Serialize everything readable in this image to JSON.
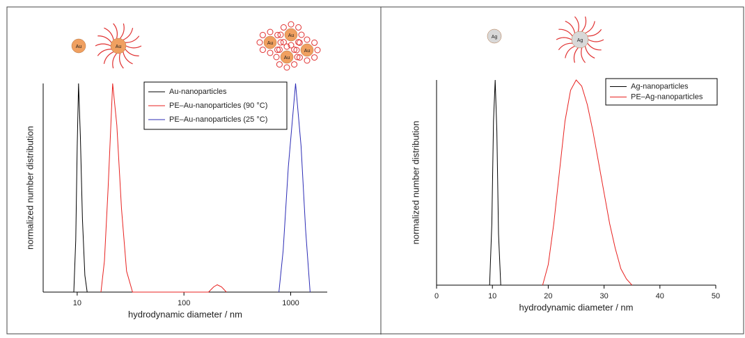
{
  "chart_data": [
    {
      "type": "line",
      "x_label": "hydrodynamic diameter / nm",
      "y_label": "normalized number distribution",
      "xscale": "log",
      "xlim": [
        4.8,
        2200
      ],
      "xticks": [
        10,
        100,
        1000
      ],
      "ylim": [
        0,
        1
      ],
      "legend": "upper right",
      "annotations": [
        "Au",
        "Au",
        "Au",
        "Au",
        "Au",
        "Au"
      ],
      "series": [
        {
          "name": "Au-nanoparticles",
          "color": "#000000",
          "x": [
            9.3,
            9.7,
            10,
            10.3,
            10.7,
            11.2,
            11.8,
            12.4
          ],
          "values": [
            0,
            0.25,
            0.7,
            1,
            0.75,
            0.35,
            0.08,
            0
          ]
        },
        {
          "name": "PE–Au-nanoparticles (90 °C)",
          "color": "#e8211f",
          "x": [
            16.7,
            18,
            19.5,
            21.5,
            23.5,
            26,
            29,
            33,
            170,
            190,
            205,
            225,
            250
          ],
          "values": [
            0,
            0.15,
            0.5,
            1,
            0.8,
            0.4,
            0.1,
            0,
            0,
            0.025,
            0.035,
            0.025,
            0
          ]
        },
        {
          "name": "PE–Au-nanoparticles (25 °C)",
          "color": "#2b2bb5",
          "x": [
            776,
            850,
            950,
            1110,
            1250,
            1380,
            1520
          ],
          "values": [
            0,
            0.2,
            0.6,
            1,
            0.7,
            0.3,
            0
          ]
        }
      ]
    },
    {
      "type": "line",
      "x_label": "hydrodynamic diameter / nm",
      "y_label": "normalized number distribution",
      "xscale": "linear",
      "xlim": [
        0,
        50
      ],
      "xticks": [
        0,
        10,
        20,
        30,
        40,
        50
      ],
      "ylim": [
        0,
        1
      ],
      "legend": "upper right",
      "annotations": [
        "Ag",
        "Ag"
      ],
      "series": [
        {
          "name": "Ag-nanoparticles",
          "color": "#000000",
          "x": [
            9.5,
            9.9,
            10.2,
            10.5,
            10.8,
            11.1,
            11.5
          ],
          "values": [
            0,
            0.3,
            0.8,
            1,
            0.75,
            0.25,
            0
          ]
        },
        {
          "name": "PE–Ag-nanoparticles",
          "color": "#e8211f",
          "x": [
            19,
            20,
            21,
            22,
            23,
            24,
            25,
            26,
            27,
            28,
            29,
            30,
            31,
            32,
            33,
            34,
            35
          ],
          "values": [
            0,
            0.1,
            0.3,
            0.55,
            0.8,
            0.95,
            1,
            0.97,
            0.88,
            0.75,
            0.6,
            0.45,
            0.3,
            0.18,
            0.08,
            0.03,
            0
          ]
        }
      ]
    }
  ]
}
